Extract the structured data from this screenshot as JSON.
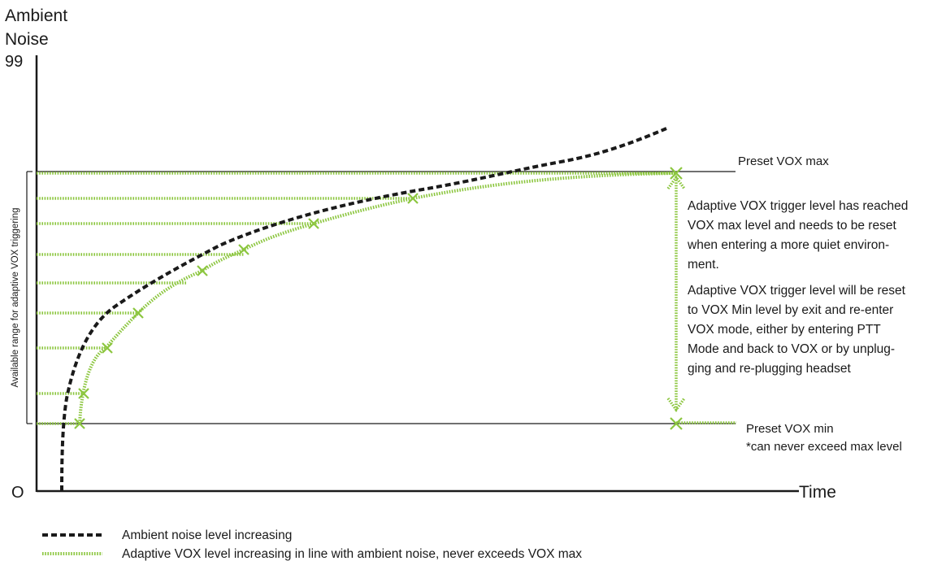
{
  "axes": {
    "y_title_line1": "Ambient",
    "y_title_line2": "Noise",
    "y_max": "99",
    "y_min": "O",
    "x_title": "Time"
  },
  "reference_lines": {
    "max_label": "Preset VOX max",
    "min_label": "Preset VOX min",
    "min_note": "*can never exceed max level"
  },
  "range_label": "Available range for adaptive VOX triggering",
  "notes": {
    "reached": [
      "Adaptive VOX trigger level has reached",
      "VOX max level and needs to be reset",
      "when entering a more quiet environ-",
      "ment."
    ],
    "reset": [
      "Adaptive VOX trigger level will be reset",
      "to VOX Min level by exit and re-enter",
      "VOX mode, either by entering PTT",
      "Mode and back to VOX or by unplug-",
      "ging and re-plugging headset"
    ]
  },
  "legend": {
    "ambient": "Ambient noise level increasing",
    "adaptive": "Adaptive VOX level increasing in line with ambient noise, never exceeds VOX max"
  },
  "colors": {
    "ambient": "#1a1a1a",
    "adaptive": "#8cc63f",
    "axis": "#1a1a1a"
  }
}
